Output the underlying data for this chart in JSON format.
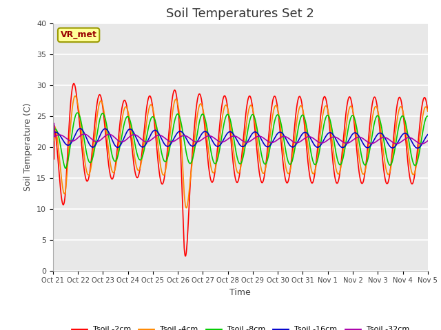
{
  "title": "Soil Temperatures Set 2",
  "xlabel": "Time",
  "ylabel": "Soil Temperature (C)",
  "xlim": [
    0,
    360
  ],
  "ylim": [
    0,
    40
  ],
  "yticks": [
    0,
    5,
    10,
    15,
    20,
    25,
    30,
    35,
    40
  ],
  "xtick_labels": [
    "Oct 21",
    "Oct 22",
    "Oct 23",
    "Oct 24",
    "Oct 25",
    "Oct 26",
    "Oct 27",
    "Oct 28",
    "Oct 29",
    "Oct 30",
    "Oct 31",
    "Nov 1",
    "Nov 2",
    "Nov 3",
    "Nov 4",
    "Nov 5"
  ],
  "annotation_text": "VR_met",
  "series": [
    {
      "label": "Tsoil -2cm",
      "color": "#FF0000"
    },
    {
      "label": "Tsoil -4cm",
      "color": "#FF8800"
    },
    {
      "label": "Tsoil -8cm",
      "color": "#00CC00"
    },
    {
      "label": "Tsoil -16cm",
      "color": "#0000CC"
    },
    {
      "label": "Tsoil -32cm",
      "color": "#AA00AA"
    }
  ],
  "background_color": "#E8E8E8",
  "title_fontsize": 13,
  "linewidth": 1.2
}
